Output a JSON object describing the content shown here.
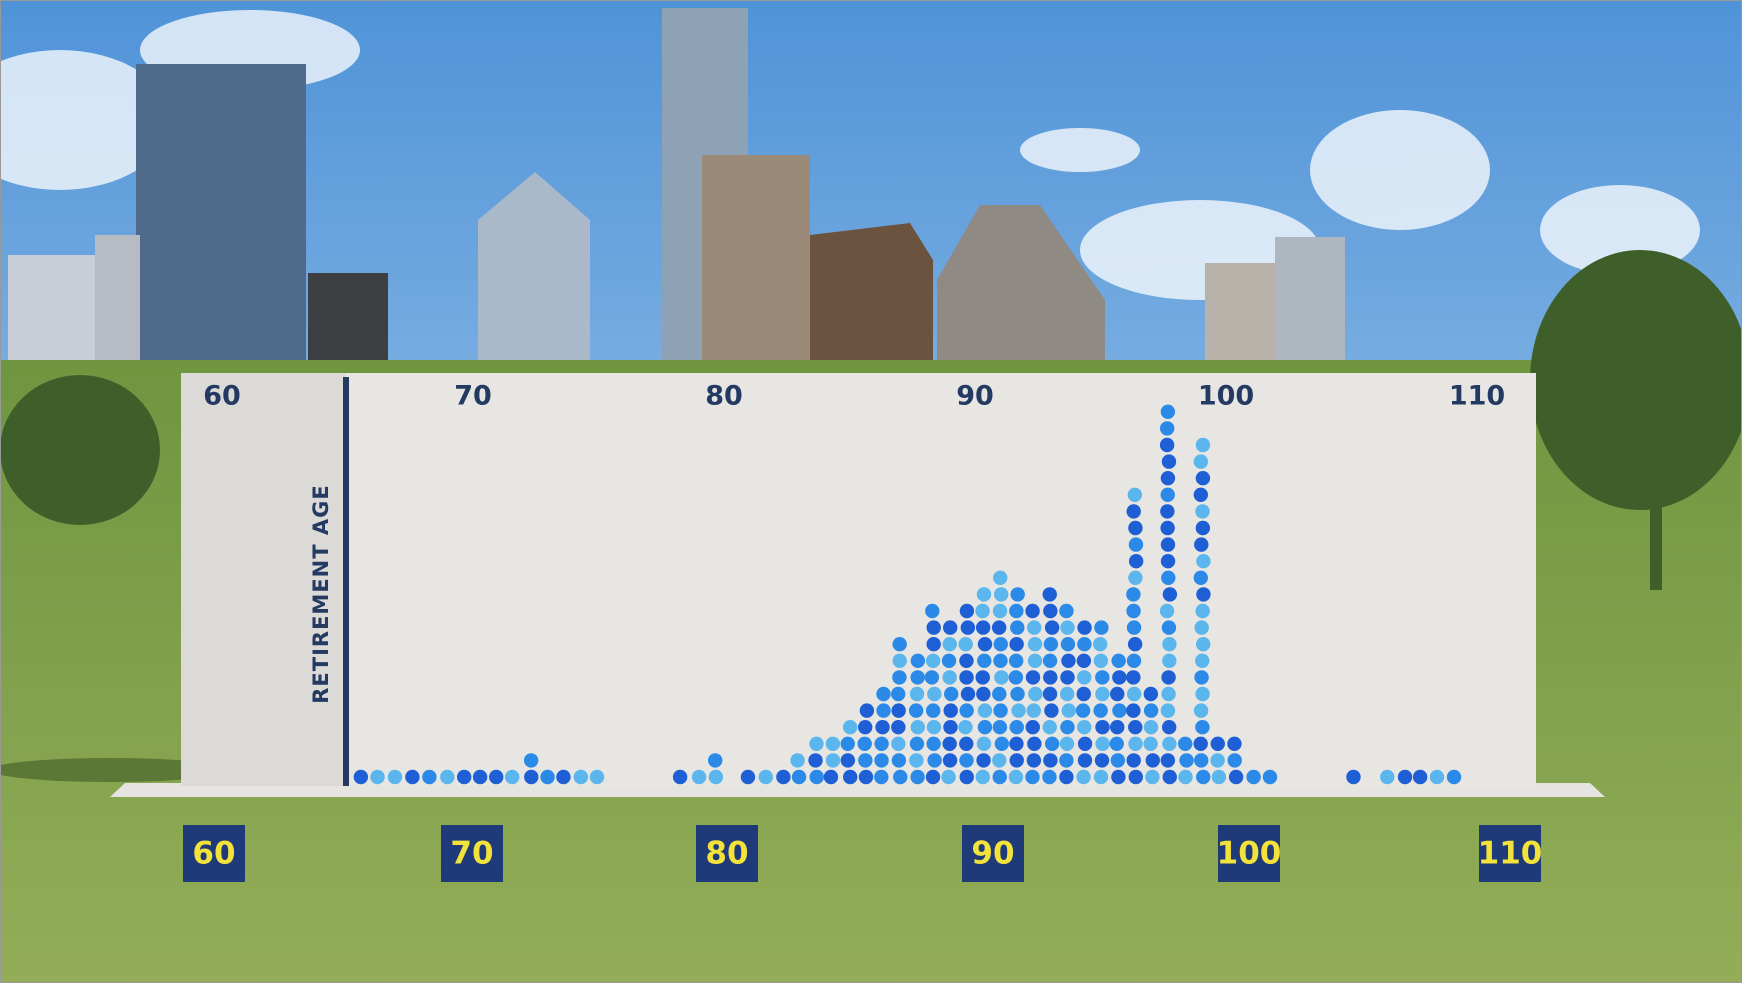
{
  "wall": {
    "scale_labels": [
      "60",
      "70",
      "80",
      "90",
      "100",
      "110"
    ],
    "axis_label": "RETIREMENT AGE"
  },
  "ground_signs": [
    "60",
    "70",
    "80",
    "90",
    "100",
    "110"
  ]
}
